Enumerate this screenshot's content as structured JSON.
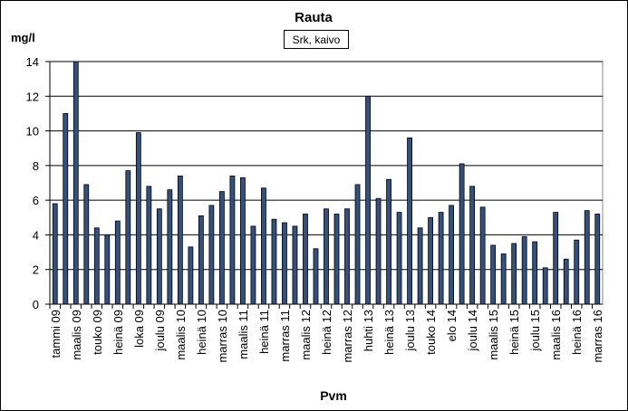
{
  "chart_data": {
    "type": "bar",
    "title": "Rauta",
    "subtitle": "Srk, kaivo",
    "y_label": "mg/l",
    "x_label": "Pvm",
    "categories": [
      "tammi 09",
      null,
      "maalis 09",
      null,
      "touko 09",
      null,
      "heinä 09",
      null,
      "loka 09",
      null,
      "joulu 09",
      null,
      "maalis 10",
      null,
      "heinä 10",
      null,
      "marras 10",
      null,
      "maalis 11",
      null,
      "heinä 11",
      null,
      "marras 11",
      null,
      "maalis 12",
      null,
      "heinä 12",
      null,
      "marras 12",
      null,
      "huhti 13",
      null,
      "heinä 13",
      null,
      "joulu 13",
      null,
      "touko 14",
      null,
      "elo 14",
      null,
      "joulu 14",
      null,
      "maalis 15",
      null,
      "heinä 15",
      null,
      "joulu 15",
      null,
      "maalis 16",
      null,
      "heinä 16",
      null,
      "marras 16"
    ],
    "values": [
      5.8,
      11,
      14,
      6.9,
      4.4,
      4.0,
      4.8,
      7.7,
      9.9,
      6.8,
      5.5,
      6.6,
      7.4,
      3.3,
      5.1,
      5.7,
      6.5,
      7.4,
      7.3,
      4.5,
      6.7,
      4.9,
      4.7,
      4.5,
      5.2,
      3.2,
      5.5,
      5.2,
      5.5,
      6.9,
      12,
      6.1,
      7.2,
      5.3,
      9.6,
      4.4,
      5.0,
      5.3,
      5.7,
      8.1,
      6.8,
      5.6,
      3.4,
      2.9,
      3.5,
      3.9,
      3.6,
      2.1,
      5.3,
      2.6,
      3.7,
      5.4,
      5.2
    ],
    "color": "#33507f",
    "ylim": [
      0,
      14
    ],
    "yticks": [
      0,
      2,
      4,
      6,
      8,
      10,
      12,
      14
    ],
    "grid": true
  }
}
